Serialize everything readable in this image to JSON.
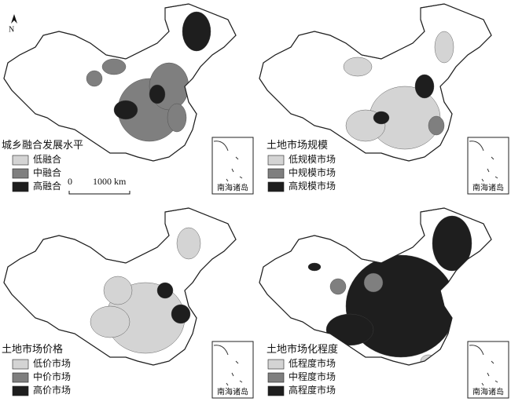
{
  "north_arrow": "N",
  "scale_bar": {
    "start": "0",
    "end": "1000 km"
  },
  "panels": [
    {
      "title": "城乡融合发展水平",
      "inset_label": "南海诸岛",
      "legend": [
        {
          "label": "低融合",
          "color": "#d4d4d4"
        },
        {
          "label": "中融合",
          "color": "#7f7f7f"
        },
        {
          "label": "高融合",
          "color": "#1e1e1e"
        }
      ]
    },
    {
      "title": "土地市场规模",
      "inset_label": "南海诸岛",
      "legend": [
        {
          "label": "低规模市场",
          "color": "#d4d4d4"
        },
        {
          "label": "中规模市场",
          "color": "#7f7f7f"
        },
        {
          "label": "高规模市场",
          "color": "#1e1e1e"
        }
      ]
    },
    {
      "title": "土地市场价格",
      "inset_label": "南海诸岛",
      "legend": [
        {
          "label": "低价市场",
          "color": "#d4d4d4"
        },
        {
          "label": "中价市场",
          "color": "#7f7f7f"
        },
        {
          "label": "高价市场",
          "color": "#1e1e1e"
        }
      ]
    },
    {
      "title": "土地市场化程度",
      "inset_label": "南海诸岛",
      "legend": [
        {
          "label": "低程度市场",
          "color": "#d4d4d4"
        },
        {
          "label": "中程度市场",
          "color": "#7f7f7f"
        },
        {
          "label": "高程度市场",
          "color": "#1e1e1e"
        }
      ]
    }
  ]
}
